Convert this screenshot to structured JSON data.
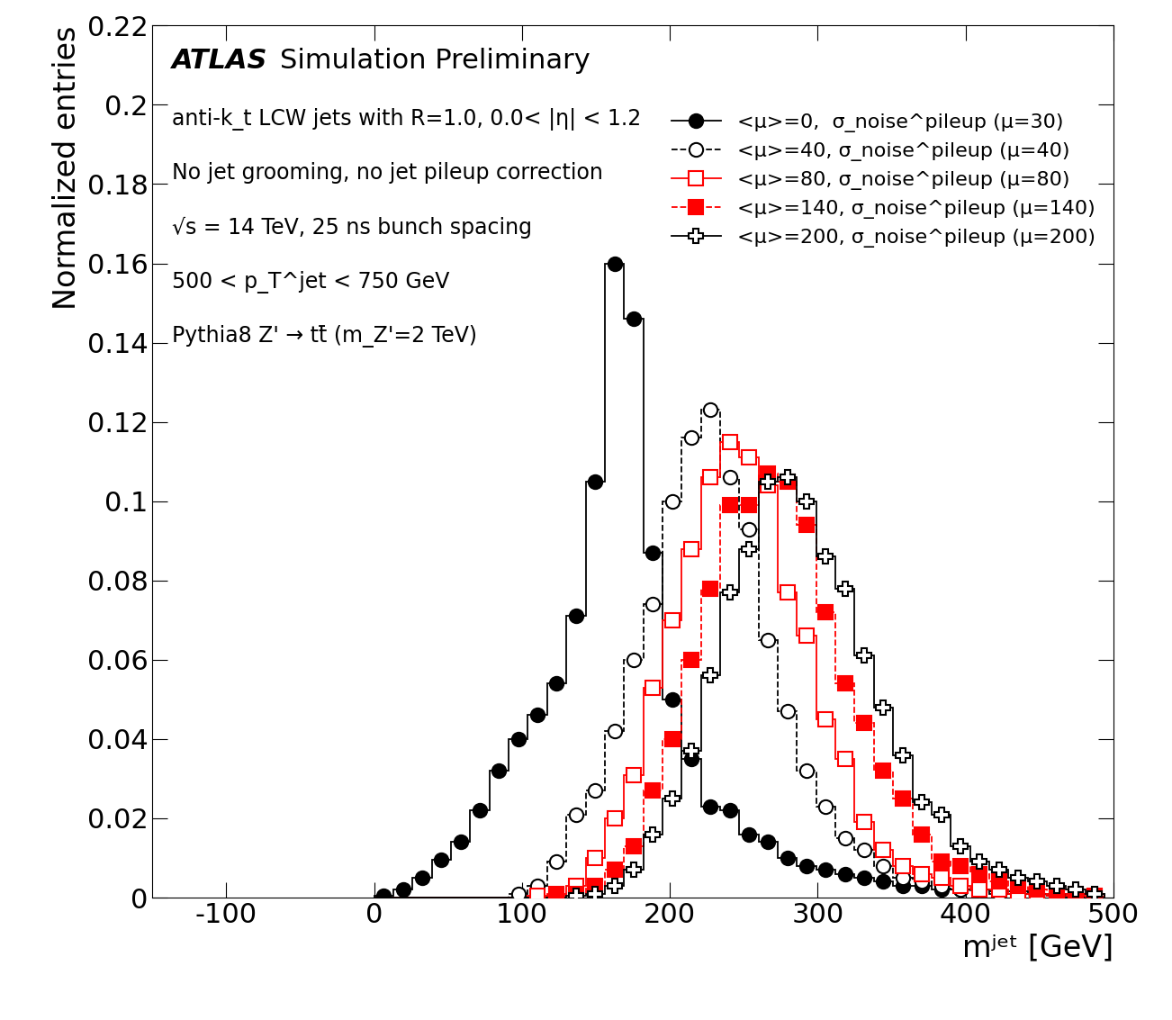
{
  "chart_data": {
    "type": "histogram",
    "title": "ATLAS",
    "subtitle": "Simulation Preliminary",
    "annotations": [
      "anti-k_t LCW jets with R=1.0, 0.0< |η| < 1.2",
      "No jet grooming, no jet pileup correction",
      "√s = 14 TeV, 25 ns bunch spacing",
      "500 < p_T^jet < 750 GeV",
      "Pythia8 Z' → tt̄ (m_Z'=2 TeV)"
    ],
    "x_label": "mʲᵉᵗ [GeV]",
    "y_label": "Normalized entries",
    "bins": [
      0,
      13,
      26,
      39,
      52,
      65,
      78,
      91,
      104,
      117,
      130,
      143,
      156,
      169,
      182,
      195,
      208,
      221,
      234,
      247,
      260,
      273,
      286,
      299,
      312,
      325,
      338,
      351,
      364,
      377,
      390,
      403,
      416,
      429,
      442,
      455,
      468,
      481,
      494
    ],
    "series": [
      {
        "name": "<μ>=0,  σ_noise^pileup (μ=30)",
        "color": "#000000",
        "marker": "circle",
        "line_style": "solid",
        "values": [
          0.0005,
          0.002,
          0.005,
          0.0095,
          0.014,
          0.022,
          0.032,
          0.04,
          0.046,
          0.054,
          0.071,
          0.105,
          0.16,
          0.146,
          0.087,
          0.05,
          0.035,
          0.023,
          0.022,
          0.016,
          0.014,
          0.01,
          0.008,
          0.007,
          0.006,
          0.005,
          0.004,
          0.003,
          0.003,
          0.002,
          0.002,
          0.002,
          0.0015,
          0.0015,
          0.001,
          0.001,
          0.001,
          0.001
        ]
      },
      {
        "name": "<μ>=40, σ_noise^pileup (μ=40)",
        "color": "#000000",
        "marker": "open_circle",
        "line_style": "dashed",
        "values": [
          0,
          0,
          0,
          0,
          0,
          0,
          0,
          0.001,
          0.003,
          0.009,
          0.021,
          0.027,
          0.042,
          0.06,
          0.074,
          0.1,
          0.116,
          0.123,
          0.106,
          0.093,
          0.065,
          0.047,
          0.032,
          0.023,
          0.015,
          0.012,
          0.008,
          0.005,
          0.004,
          0.003,
          0.002,
          0.0015,
          0.001,
          0.001,
          0.0005,
          0.0005,
          0.0003,
          0.0002
        ]
      },
      {
        "name": "<μ>=80, σ_noise^pileup (μ=80)",
        "color": "#ff0000",
        "marker": "open_square",
        "line_style": "solid",
        "values": [
          0,
          0,
          0,
          0,
          0,
          0,
          0,
          0,
          0.0005,
          0.001,
          0.003,
          0.01,
          0.02,
          0.031,
          0.053,
          0.07,
          0.088,
          0.106,
          0.115,
          0.111,
          0.104,
          0.077,
          0.066,
          0.045,
          0.035,
          0.019,
          0.012,
          0.008,
          0.006,
          0.005,
          0.003,
          0.002,
          0.002,
          0.001,
          0.001,
          0.0005,
          0.0005,
          0.0003
        ]
      },
      {
        "name": "<μ>=140, σ_noise^pileup (μ=140)",
        "color": "#ff0000",
        "marker": "square",
        "line_style": "dashed",
        "values": [
          0,
          0,
          0,
          0,
          0,
          0,
          0,
          0,
          0,
          0.0005,
          0.001,
          0.003,
          0.007,
          0.013,
          0.027,
          0.04,
          0.06,
          0.078,
          0.099,
          0.099,
          0.107,
          0.105,
          0.094,
          0.072,
          0.054,
          0.044,
          0.032,
          0.025,
          0.016,
          0.009,
          0.008,
          0.006,
          0.004,
          0.003,
          0.002,
          0.001,
          0.001,
          0.0005
        ]
      },
      {
        "name": "<μ>=200, σ_noise^pileup (μ=200)",
        "color": "#000000",
        "marker": "open_cross",
        "line_style": "solid",
        "values": [
          0,
          0,
          0,
          0,
          0,
          0,
          0,
          0,
          0,
          0,
          0.0005,
          0.001,
          0.003,
          0.007,
          0.016,
          0.025,
          0.037,
          0.056,
          0.077,
          0.088,
          0.105,
          0.106,
          0.1,
          0.086,
          0.078,
          0.061,
          0.048,
          0.036,
          0.024,
          0.021,
          0.013,
          0.009,
          0.007,
          0.005,
          0.004,
          0.003,
          0.002,
          0.001
        ]
      }
    ],
    "xlim": [
      -150,
      500
    ],
    "ylim": [
      0,
      0.22
    ],
    "xticks": [
      -100,
      0,
      100,
      200,
      300,
      400,
      500
    ],
    "yticks": [
      0,
      0.02,
      0.04,
      0.06,
      0.08,
      0.1,
      0.12,
      0.14,
      0.16,
      0.18,
      0.2,
      0.22
    ],
    "legend": "upper right",
    "grid": false
  }
}
